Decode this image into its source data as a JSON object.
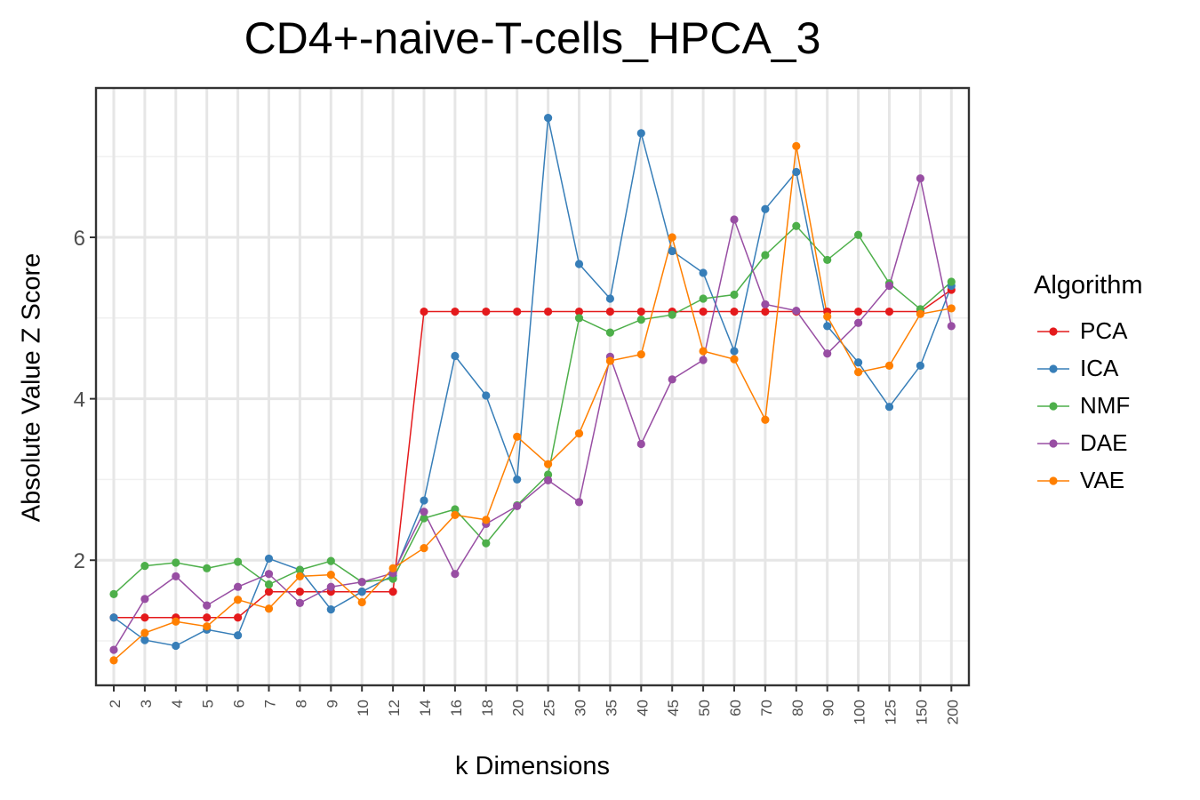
{
  "chart_data": {
    "type": "line",
    "title": "CD4+-naive-T-cells_HPCA_3",
    "xlabel": "k Dimensions",
    "ylabel": "Absolute Value Z Score",
    "legend_title": "Algorithm",
    "legend_position": "right",
    "grid": true,
    "ylim": [
      0.45,
      7.85
    ],
    "yticks": [
      2,
      4,
      6
    ],
    "categories": [
      "2",
      "3",
      "4",
      "5",
      "6",
      "7",
      "8",
      "9",
      "10",
      "12",
      "14",
      "16",
      "18",
      "20",
      "25",
      "30",
      "35",
      "40",
      "45",
      "50",
      "60",
      "70",
      "80",
      "90",
      "100",
      "125",
      "150",
      "200"
    ],
    "series": [
      {
        "name": "PCA",
        "color": "#E41A1C",
        "values": [
          1.29,
          1.29,
          1.29,
          1.29,
          1.29,
          1.61,
          1.61,
          1.61,
          1.61,
          1.61,
          5.08,
          5.08,
          5.08,
          5.08,
          5.08,
          5.08,
          5.08,
          5.08,
          5.08,
          5.08,
          5.08,
          5.08,
          5.08,
          5.08,
          5.08,
          5.08,
          5.08,
          5.35
        ]
      },
      {
        "name": "ICA",
        "color": "#377EB8",
        "values": [
          1.29,
          1.01,
          0.94,
          1.14,
          1.07,
          2.02,
          1.88,
          1.39,
          1.61,
          1.81,
          2.74,
          4.53,
          4.04,
          3.0,
          7.48,
          5.67,
          5.24,
          7.29,
          5.83,
          5.56,
          4.59,
          6.35,
          6.81,
          4.9,
          4.45,
          3.9,
          4.41,
          5.4
        ]
      },
      {
        "name": "NMF",
        "color": "#4DAF4A",
        "values": [
          1.58,
          1.93,
          1.97,
          1.9,
          1.98,
          1.7,
          1.88,
          1.99,
          1.73,
          1.77,
          2.52,
          2.63,
          2.21,
          2.68,
          3.06,
          5.0,
          4.82,
          4.98,
          5.04,
          5.24,
          5.29,
          5.78,
          6.14,
          5.72,
          6.03,
          5.43,
          5.11,
          5.45
        ]
      },
      {
        "name": "DAE",
        "color": "#984EA3",
        "values": [
          0.89,
          1.52,
          1.8,
          1.44,
          1.67,
          1.83,
          1.47,
          1.67,
          1.73,
          1.84,
          2.6,
          1.83,
          2.45,
          2.67,
          2.99,
          2.72,
          4.52,
          3.44,
          4.24,
          4.48,
          6.22,
          5.17,
          5.09,
          4.56,
          4.94,
          5.4,
          6.73,
          4.9
        ]
      },
      {
        "name": "VAE",
        "color": "#FF7F00",
        "values": [
          0.76,
          1.1,
          1.24,
          1.18,
          1.51,
          1.4,
          1.8,
          1.82,
          1.48,
          1.9,
          2.15,
          2.56,
          2.5,
          3.53,
          3.19,
          3.57,
          4.47,
          4.55,
          6.0,
          4.59,
          4.49,
          3.74,
          7.13,
          5.02,
          4.33,
          4.41,
          5.05,
          5.12
        ]
      }
    ]
  }
}
